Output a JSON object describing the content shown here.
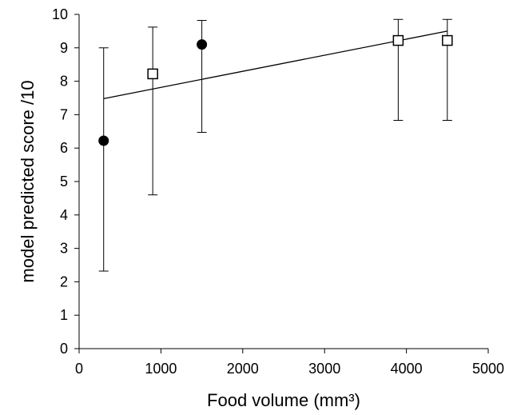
{
  "chart_data": {
    "type": "scatter",
    "title": "",
    "xlabel": "Food volume (mm³)",
    "ylabel": "model predicted score  /10",
    "xlim": [
      0,
      5000
    ],
    "ylim": [
      0,
      10
    ],
    "x_ticks": [
      0,
      1000,
      2000,
      3000,
      4000,
      5000
    ],
    "y_ticks": [
      0,
      1,
      2,
      3,
      4,
      5,
      6,
      7,
      8,
      9,
      10
    ],
    "grid": false,
    "legend": "none",
    "series": [
      {
        "marker": "filled-circle",
        "color": "#000000",
        "points": [
          {
            "x": 300,
            "y": 6.22,
            "err_low": 2.32,
            "err_high": 9.0
          },
          {
            "x": 1500,
            "y": 9.1,
            "err_low": 6.47,
            "err_high": 9.82
          }
        ]
      },
      {
        "marker": "open-square",
        "color": "#000000",
        "points": [
          {
            "x": 900,
            "y": 8.22,
            "err_low": 4.6,
            "err_high": 9.62
          },
          {
            "x": 3900,
            "y": 9.22,
            "err_low": 6.83,
            "err_high": 9.85
          },
          {
            "x": 4500,
            "y": 9.22,
            "err_low": 6.83,
            "err_high": 9.85
          }
        ]
      }
    ],
    "trendline": {
      "x": [
        300,
        4500
      ],
      "y": [
        7.48,
        9.5
      ]
    }
  }
}
